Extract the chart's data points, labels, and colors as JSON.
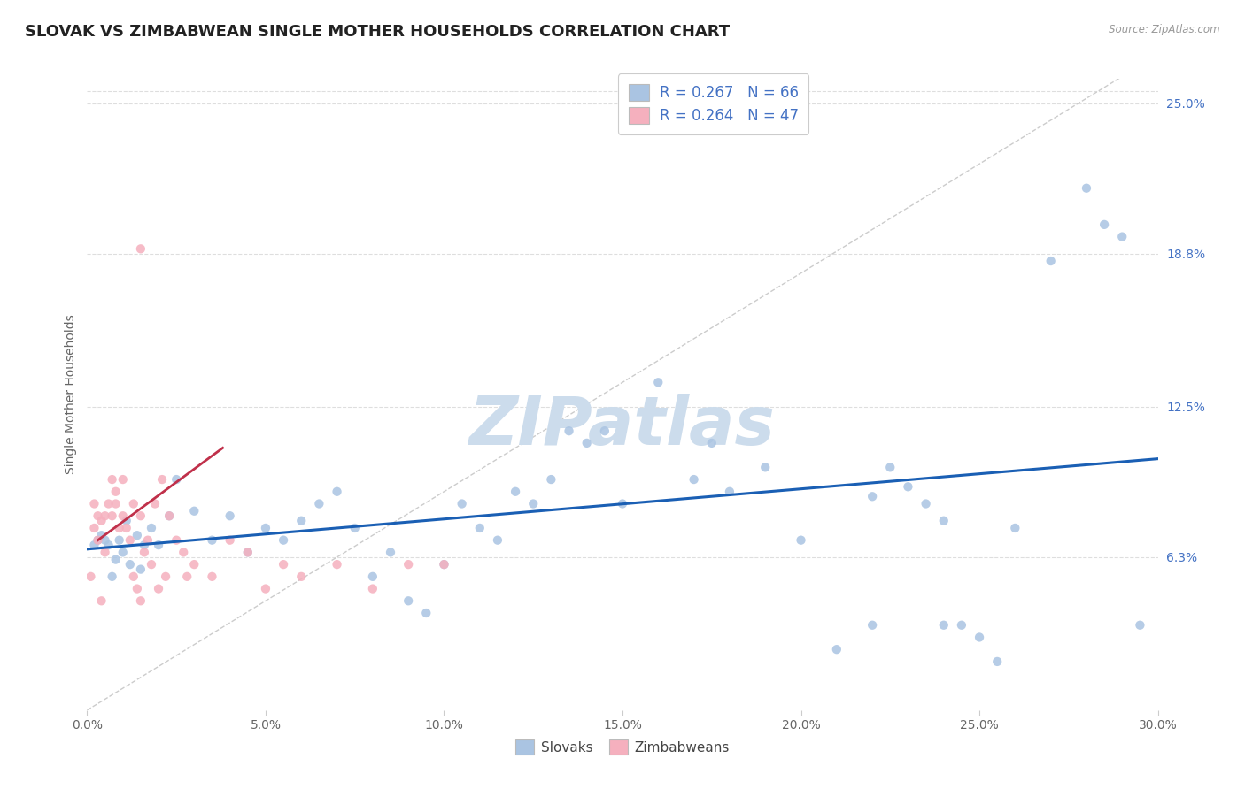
{
  "title": "SLOVAK VS ZIMBABWEAN SINGLE MOTHER HOUSEHOLDS CORRELATION CHART",
  "source": "Source: ZipAtlas.com",
  "ylabel": "Single Mother Households",
  "xmin": 0.0,
  "xmax": 30.0,
  "ymin": 0.0,
  "ymax": 26.0,
  "ytick_vals": [
    6.3,
    12.5,
    18.8,
    25.0
  ],
  "ytick_labels": [
    "6.3%",
    "12.5%",
    "18.8%",
    "25.0%"
  ],
  "xtick_vals": [
    0.0,
    5.0,
    10.0,
    15.0,
    20.0,
    25.0,
    30.0
  ],
  "xtick_labels": [
    "0.0%",
    "5.0%",
    "10.0%",
    "15.0%",
    "20.0%",
    "25.0%",
    "30.0%"
  ],
  "slovak_R": 0.267,
  "slovak_N": 66,
  "zimbabwean_R": 0.264,
  "zimbabwean_N": 47,
  "slovak_color": "#aac4e2",
  "zimbabwean_color": "#f5b0be",
  "slovak_line_color": "#1a5fb4",
  "zimbabwean_line_color": "#c0304a",
  "ref_line_color": "#cccccc",
  "watermark": "ZIPatlas",
  "watermark_color": "#ccdcec",
  "legend_label_slovak": "Slovaks",
  "legend_label_zimbabwean": "Zimbabweans",
  "slovak_x": [
    0.2,
    0.3,
    0.4,
    0.5,
    0.6,
    0.7,
    0.8,
    0.9,
    1.0,
    1.1,
    1.2,
    1.4,
    1.5,
    1.6,
    1.8,
    2.0,
    2.3,
    2.5,
    3.0,
    3.5,
    4.0,
    4.5,
    5.0,
    5.5,
    6.0,
    6.5,
    7.0,
    7.5,
    8.0,
    8.5,
    9.0,
    9.5,
    10.0,
    10.5,
    11.0,
    11.5,
    12.0,
    12.5,
    13.0,
    13.5,
    14.0,
    14.5,
    15.0,
    16.0,
    17.0,
    17.5,
    18.0,
    19.0,
    20.0,
    21.0,
    22.0,
    22.5,
    23.5,
    24.0,
    24.5,
    25.0,
    25.5,
    26.0,
    27.0,
    28.0,
    28.5,
    29.0,
    29.5,
    22.0,
    23.0,
    24.0
  ],
  "slovak_y": [
    6.8,
    7.0,
    7.2,
    7.0,
    6.8,
    5.5,
    6.2,
    7.0,
    6.5,
    7.8,
    6.0,
    7.2,
    5.8,
    6.8,
    7.5,
    6.8,
    8.0,
    9.5,
    8.2,
    7.0,
    8.0,
    6.5,
    7.5,
    7.0,
    7.8,
    8.5,
    9.0,
    7.5,
    5.5,
    6.5,
    4.5,
    4.0,
    6.0,
    8.5,
    7.5,
    7.0,
    9.0,
    8.5,
    9.5,
    11.5,
    11.0,
    11.5,
    8.5,
    13.5,
    9.5,
    11.0,
    9.0,
    10.0,
    7.0,
    2.5,
    3.5,
    10.0,
    8.5,
    3.5,
    3.5,
    3.0,
    2.0,
    7.5,
    18.5,
    21.5,
    20.0,
    19.5,
    3.5,
    8.8,
    9.2,
    7.8
  ],
  "zimbabwean_x": [
    0.1,
    0.2,
    0.2,
    0.3,
    0.3,
    0.4,
    0.5,
    0.5,
    0.6,
    0.7,
    0.7,
    0.8,
    0.8,
    0.9,
    1.0,
    1.0,
    1.1,
    1.2,
    1.3,
    1.3,
    1.4,
    1.5,
    1.5,
    1.6,
    1.7,
    1.8,
    1.9,
    2.0,
    2.1,
    2.2,
    2.3,
    2.5,
    2.7,
    3.0,
    3.5,
    4.0,
    4.5,
    5.0,
    5.5,
    6.0,
    7.0,
    8.0,
    9.0,
    10.0,
    1.5,
    0.4,
    2.8
  ],
  "zimbabwean_y": [
    5.5,
    8.5,
    7.5,
    7.0,
    8.0,
    7.8,
    6.5,
    8.0,
    8.5,
    8.0,
    9.5,
    8.5,
    9.0,
    7.5,
    8.0,
    9.5,
    7.5,
    7.0,
    5.5,
    8.5,
    5.0,
    4.5,
    8.0,
    6.5,
    7.0,
    6.0,
    8.5,
    5.0,
    9.5,
    5.5,
    8.0,
    7.0,
    6.5,
    6.0,
    5.5,
    7.0,
    6.5,
    5.0,
    6.0,
    5.5,
    6.0,
    5.0,
    6.0,
    6.0,
    19.0,
    4.5,
    5.5
  ],
  "grid_color": "#dedede",
  "title_fontsize": 13,
  "axis_label_fontsize": 10,
  "tick_fontsize": 10,
  "scatter_size": 55,
  "watermark_fontsize": 55
}
